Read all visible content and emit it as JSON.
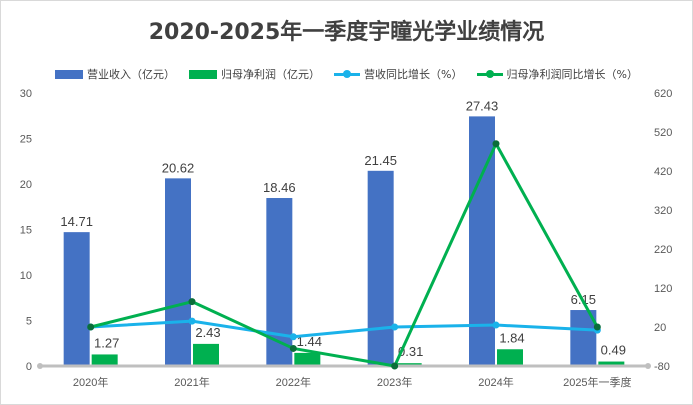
{
  "chart_data": {
    "type": "bar",
    "title": "2020-2025年一季度宇瞳光学业绩情况",
    "categories": [
      "2020年",
      "2021年",
      "2022年",
      "2023年",
      "2024年",
      "2025年一季度"
    ],
    "series": [
      {
        "name": "营业收入（亿元）",
        "type": "bar",
        "axis": "left",
        "color": "#4472C4",
        "values": [
          14.71,
          20.62,
          18.46,
          21.45,
          27.43,
          6.15
        ]
      },
      {
        "name": "归母净利润（亿元）",
        "type": "bar",
        "axis": "left",
        "color": "#00B050",
        "values": [
          1.27,
          2.43,
          1.44,
          0.31,
          1.84,
          0.49
        ]
      },
      {
        "name": "营收同比增长（%）",
        "type": "line",
        "axis": "right",
        "color": "#1AB2EA",
        "values": [
          20,
          35,
          -5,
          20,
          25,
          12
        ]
      },
      {
        "name": "归母净利润同比增长（%）",
        "type": "line",
        "axis": "right",
        "color": "#00B050",
        "values": [
          20,
          85,
          -35,
          -80,
          490,
          20
        ]
      }
    ],
    "ylim_left": [
      0,
      30
    ],
    "yticks_left": [
      "0",
      "5",
      "10",
      "15",
      "20",
      "25",
      "30"
    ],
    "ylim_right": [
      -80,
      620
    ],
    "yticks_right": [
      "-80",
      "20",
      "120",
      "220",
      "320",
      "420",
      "520",
      "620"
    ],
    "grid": false,
    "legend": "top"
  }
}
